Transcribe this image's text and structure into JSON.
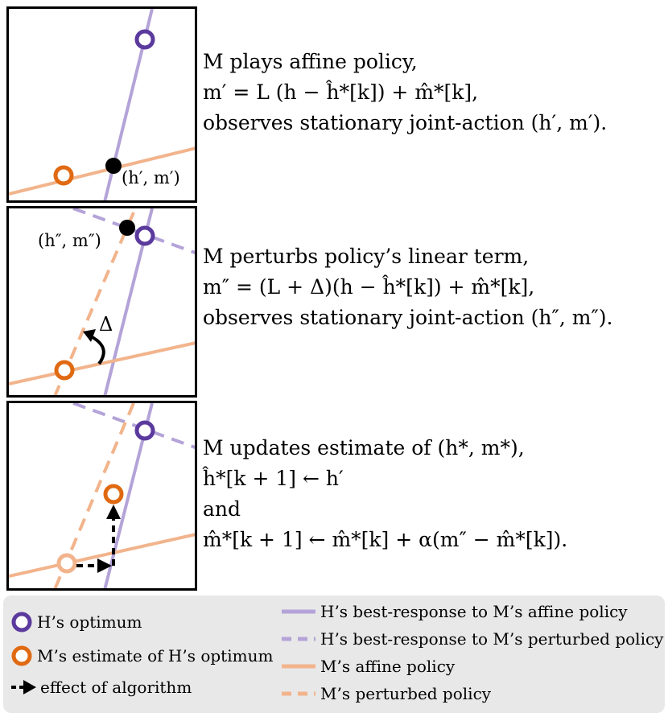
{
  "panel1": {
    "point_label": "(h′, m′)",
    "text": [
      "M plays affine policy,",
      "m′ = L (h − ĥ*[k]) + m̂*[k],",
      "observes stationary joint-action (h′, m′)."
    ]
  },
  "panel2": {
    "point_label": "(h″, m″)",
    "delta_label": "Δ",
    "text": [
      "M perturbs policy’s linear term,",
      "m″ = (L + Δ)(h − ĥ*[k]) + m̂*[k],",
      "observes stationary joint-action (h″, m″)."
    ]
  },
  "panel3": {
    "text": [
      "M updates estimate of (h*, m*),",
      "ĥ*[k + 1] ← h′",
      "and",
      "m̂*[k + 1] ← m̂*[k] + α(m″ − m̂*[k])."
    ]
  },
  "legend": {
    "h_optimum": "H’s optimum",
    "m_estimate": "M’s estimate of H’s optimum",
    "algorithm_effect": "effect of algorithm",
    "h_best_response_affine": "H’s best-response to M’s affine policy",
    "h_best_response_perturbed": "H’s best-response to M’s perturbed policy",
    "m_affine": "M’s affine policy",
    "m_perturbed": "M’s perturbed policy"
  },
  "colors": {
    "purple": "#5b3a9e",
    "purple_line": "#b4a3d8",
    "orange": "#e06a12",
    "orange_line": "#f2b48c"
  }
}
